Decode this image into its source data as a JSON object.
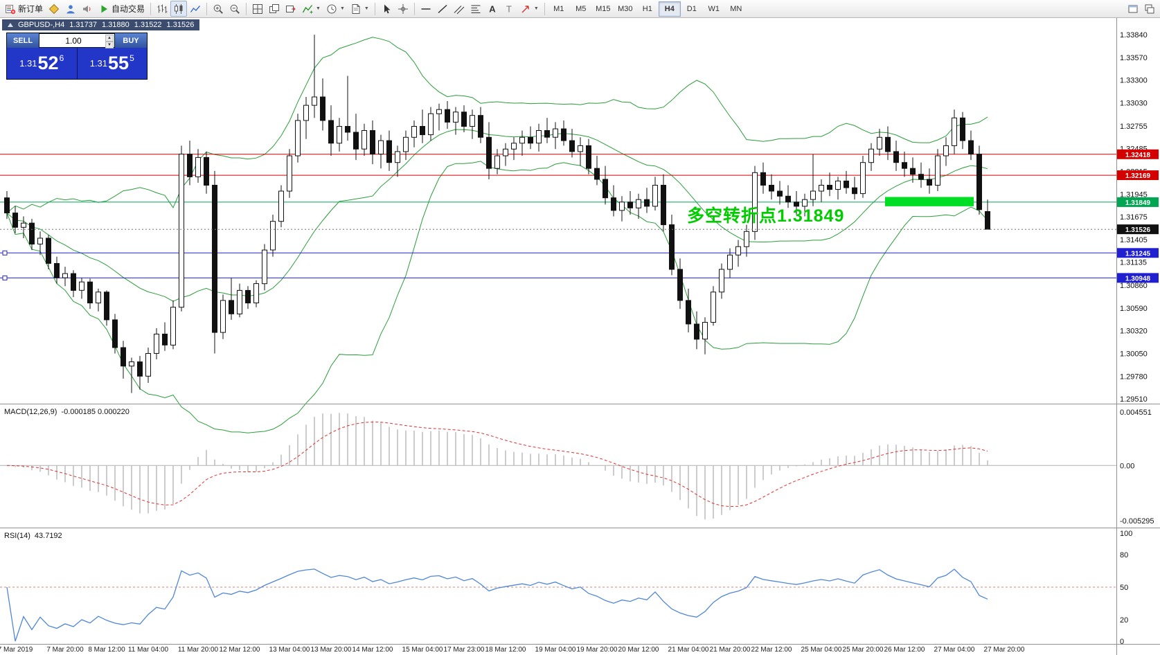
{
  "toolbar": {
    "items": [
      {
        "kind": "button",
        "name": "new-order-button",
        "icon": "neworder",
        "label": "新订单"
      },
      {
        "kind": "button",
        "name": "market-watch-button",
        "icon": "diamond"
      },
      {
        "kind": "button",
        "name": "profile-button",
        "icon": "person"
      },
      {
        "kind": "button",
        "name": "alerts-button",
        "icon": "speaker"
      },
      {
        "kind": "button",
        "name": "autotrading-button",
        "icon": "play",
        "label": "自动交易"
      },
      {
        "kind": "sep"
      },
      {
        "kind": "button",
        "name": "bar-chart-button",
        "icon": "bars"
      },
      {
        "kind": "button",
        "name": "candlestick-chart-button",
        "icon": "candles",
        "active": true
      },
      {
        "kind": "button",
        "name": "line-chart-button",
        "icon": "linechart"
      },
      {
        "kind": "sep"
      },
      {
        "kind": "button",
        "name": "zoom-in-button",
        "icon": "zoomin"
      },
      {
        "kind": "button",
        "name": "zoom-out-button",
        "icon": "zoomout"
      },
      {
        "kind": "sep"
      },
      {
        "kind": "button",
        "name": "tile-windows-button",
        "icon": "tile"
      },
      {
        "kind": "button",
        "name": "cascade-windows-button",
        "icon": "cascade"
      },
      {
        "kind": "button",
        "name": "chart-shift-button",
        "icon": "shift"
      },
      {
        "kind": "button",
        "name": "indicators-button",
        "icon": "indicator",
        "dropdown": true
      },
      {
        "kind": "button",
        "name": "periods-button",
        "icon": "clock",
        "dropdown": true
      },
      {
        "kind": "button",
        "name": "templates-button",
        "icon": "template",
        "dropdown": true
      },
      {
        "kind": "sep"
      },
      {
        "kind": "button",
        "name": "cursor-button",
        "icon": "cursor"
      },
      {
        "kind": "button",
        "name": "crosshair-button",
        "icon": "crosshair"
      },
      {
        "kind": "sep"
      },
      {
        "kind": "button",
        "name": "horizontal-line-button",
        "icon": "hline"
      },
      {
        "kind": "button",
        "name": "trendline-button",
        "icon": "trend"
      },
      {
        "kind": "button",
        "name": "channel-button",
        "icon": "channel"
      },
      {
        "kind": "button",
        "name": "fibonacci-button",
        "icon": "fibo"
      },
      {
        "kind": "button",
        "name": "text-button",
        "icon": "textA"
      },
      {
        "kind": "button",
        "name": "text-label-button",
        "icon": "textT"
      },
      {
        "kind": "button",
        "name": "arrows-button",
        "icon": "arrowtool",
        "dropdown": true
      },
      {
        "kind": "sep"
      }
    ],
    "timeframes": [
      "M1",
      "M5",
      "M15",
      "M30",
      "H1",
      "H4",
      "D1",
      "W1",
      "MN"
    ],
    "active_timeframe": "H4",
    "right_items": [
      {
        "name": "new-chart-window-button",
        "icon": "winbtn1"
      },
      {
        "name": "window-list-button",
        "icon": "winbtn2"
      }
    ]
  },
  "symbol_info": {
    "symbol": "GBPUSD-,H4",
    "open": "1.31737",
    "high": "1.31880",
    "low": "1.31522",
    "close": "1.31526"
  },
  "trade_panel": {
    "sell_label": "SELL",
    "buy_label": "BUY",
    "volume": "1.00",
    "sell_price_prefix": "1.31",
    "sell_price_big": "52",
    "sell_price_sup": "6",
    "buy_price_prefix": "1.31",
    "buy_price_big": "55",
    "buy_price_sup": "5"
  },
  "annotation": {
    "text": "多空转折点1.31849",
    "color": "#00cc00"
  },
  "chart_data": {
    "type": "candlestick",
    "symbol": "GBPUSD-",
    "timeframe": "H4",
    "price_axis_labels": [
      "1.33840",
      "1.33570",
      "1.33300",
      "1.33030",
      "1.32755",
      "1.32485",
      "1.32215",
      "1.31945",
      "1.31675",
      "1.31405",
      "1.31135",
      "1.30860",
      "1.30590",
      "1.30320",
      "1.30050",
      "1.29780",
      "1.29510"
    ],
    "hlines": [
      {
        "price": 1.32418,
        "color": "#d40000",
        "tag": "1.32418",
        "tag_bg": "#d40000"
      },
      {
        "price": 1.32169,
        "color": "#d40000",
        "tag": "1.32169",
        "tag_bg": "#d40000"
      },
      {
        "price": 1.31849,
        "color": "#00a651",
        "tag": "1.31849",
        "tag_bg": "#00a651"
      },
      {
        "price": 1.31245,
        "color": "#2020d0",
        "tag": "1.31245",
        "tag_bg": "#2020d0",
        "handle": true
      },
      {
        "price": 1.30948,
        "color": "#2020d0",
        "tag": "1.30948",
        "tag_bg": "#2020d0",
        "handle": true
      }
    ],
    "current_price": {
      "value": 1.31526,
      "tag": "1.31526",
      "tag_bg": "#111111"
    },
    "highlight_rect": {
      "i1": 106,
      "i2": 116,
      "price_top": 1.3191,
      "price_bottom": 1.318,
      "color": "#00dd22"
    },
    "bollinger": {
      "period": 20,
      "deviation": 2,
      "color": "#2a9d3a"
    },
    "candles": [
      [
        1.319,
        1.3198,
        1.3165,
        1.3172
      ],
      [
        1.3172,
        1.318,
        1.3148,
        1.3155
      ],
      [
        1.3155,
        1.3168,
        1.3142,
        1.316
      ],
      [
        1.316,
        1.3165,
        1.3128,
        1.3135
      ],
      [
        1.3135,
        1.315,
        1.3122,
        1.3142
      ],
      [
        1.3142,
        1.3146,
        1.3105,
        1.3112
      ],
      [
        1.3112,
        1.312,
        1.3088,
        1.3095
      ],
      [
        1.3095,
        1.3108,
        1.3085,
        1.31
      ],
      [
        1.31,
        1.3104,
        1.3072,
        1.308
      ],
      [
        1.308,
        1.3095,
        1.307,
        1.309
      ],
      [
        1.309,
        1.3094,
        1.3058,
        1.3065
      ],
      [
        1.3065,
        1.3082,
        1.3055,
        1.3078
      ],
      [
        1.3078,
        1.308,
        1.3038,
        1.3045
      ],
      [
        1.3045,
        1.3052,
        1.3005,
        1.3012
      ],
      [
        1.3012,
        1.302,
        1.2975,
        1.299
      ],
      [
        1.299,
        1.3,
        1.2958,
        1.2995
      ],
      [
        1.2995,
        1.3002,
        1.2962,
        1.2978
      ],
      [
        1.2978,
        1.3012,
        1.297,
        1.3005
      ],
      [
        1.3005,
        1.3035,
        1.2998,
        1.3028
      ],
      [
        1.3028,
        1.3042,
        1.3008,
        1.3015
      ],
      [
        1.3015,
        1.3068,
        1.301,
        1.306
      ],
      [
        1.306,
        1.3252,
        1.3055,
        1.3242
      ],
      [
        1.3242,
        1.3258,
        1.3205,
        1.3215
      ],
      [
        1.3215,
        1.3248,
        1.3208,
        1.3238
      ],
      [
        1.3238,
        1.3245,
        1.3195,
        1.3205
      ],
      [
        1.3205,
        1.3222,
        1.3005,
        1.303
      ],
      [
        1.303,
        1.3075,
        1.3022,
        1.3068
      ],
      [
        1.3068,
        1.3095,
        1.3045,
        1.3052
      ],
      [
        1.3052,
        1.3088,
        1.3048,
        1.308
      ],
      [
        1.308,
        1.3085,
        1.3058,
        1.3065
      ],
      [
        1.3065,
        1.3092,
        1.306,
        1.3088
      ],
      [
        1.3088,
        1.3135,
        1.308,
        1.3128
      ],
      [
        1.3128,
        1.317,
        1.312,
        1.3162
      ],
      [
        1.3162,
        1.3205,
        1.3155,
        1.3198
      ],
      [
        1.3198,
        1.3248,
        1.319,
        1.324
      ],
      [
        1.324,
        1.329,
        1.3232,
        1.3282
      ],
      [
        1.3282,
        1.331,
        1.326,
        1.33
      ],
      [
        1.33,
        1.3384,
        1.3285,
        1.331
      ],
      [
        1.331,
        1.3332,
        1.327,
        1.3282
      ],
      [
        1.3282,
        1.33,
        1.324,
        1.3255
      ],
      [
        1.3255,
        1.3285,
        1.3245,
        1.3275
      ],
      [
        1.3275,
        1.3335,
        1.3258,
        1.3268
      ],
      [
        1.3268,
        1.329,
        1.3235,
        1.3248
      ],
      [
        1.3248,
        1.3278,
        1.324,
        1.327
      ],
      [
        1.327,
        1.3282,
        1.323,
        1.3242
      ],
      [
        1.3242,
        1.3265,
        1.3225,
        1.3258
      ],
      [
        1.3258,
        1.327,
        1.3222,
        1.3232
      ],
      [
        1.3232,
        1.3252,
        1.3215,
        1.3245
      ],
      [
        1.3245,
        1.327,
        1.3235,
        1.3262
      ],
      [
        1.3262,
        1.3282,
        1.325,
        1.3275
      ],
      [
        1.3275,
        1.3295,
        1.3255,
        1.3265
      ],
      [
        1.3265,
        1.3298,
        1.3258,
        1.329
      ],
      [
        1.329,
        1.3302,
        1.327,
        1.3295
      ],
      [
        1.3295,
        1.3305,
        1.3272,
        1.328
      ],
      [
        1.328,
        1.3298,
        1.3265,
        1.3292
      ],
      [
        1.3292,
        1.33,
        1.3268,
        1.3275
      ],
      [
        1.3275,
        1.3295,
        1.326,
        1.3288
      ],
      [
        1.3288,
        1.3298,
        1.3255,
        1.3262
      ],
      [
        1.3262,
        1.328,
        1.3212,
        1.3225
      ],
      [
        1.3225,
        1.3248,
        1.3218,
        1.324
      ],
      [
        1.324,
        1.3255,
        1.3228,
        1.3248
      ],
      [
        1.3248,
        1.3262,
        1.3235,
        1.3255
      ],
      [
        1.3255,
        1.327,
        1.324,
        1.3262
      ],
      [
        1.3262,
        1.3275,
        1.3248,
        1.3255
      ],
      [
        1.3255,
        1.3278,
        1.3245,
        1.327
      ],
      [
        1.327,
        1.3285,
        1.3255,
        1.3262
      ],
      [
        1.3262,
        1.328,
        1.3248,
        1.3272
      ],
      [
        1.3272,
        1.3282,
        1.3252,
        1.3258
      ],
      [
        1.3258,
        1.3272,
        1.3238,
        1.3245
      ],
      [
        1.3245,
        1.3262,
        1.3228,
        1.3252
      ],
      [
        1.3252,
        1.326,
        1.3218,
        1.3225
      ],
      [
        1.3225,
        1.324,
        1.3205,
        1.3212
      ],
      [
        1.3212,
        1.3228,
        1.3182,
        1.319
      ],
      [
        1.319,
        1.3205,
        1.3168,
        1.3175
      ],
      [
        1.3175,
        1.3192,
        1.3162,
        1.3185
      ],
      [
        1.3185,
        1.3198,
        1.317,
        1.3178
      ],
      [
        1.3178,
        1.3195,
        1.3165,
        1.3188
      ],
      [
        1.3188,
        1.3202,
        1.3172,
        1.318
      ],
      [
        1.318,
        1.3215,
        1.3175,
        1.3205
      ],
      [
        1.3205,
        1.3218,
        1.315,
        1.3158
      ],
      [
        1.3158,
        1.317,
        1.3098,
        1.3105
      ],
      [
        1.3105,
        1.3118,
        1.3058,
        1.3068
      ],
      [
        1.3068,
        1.3082,
        1.303,
        1.304
      ],
      [
        1.304,
        1.3055,
        1.301,
        1.3022
      ],
      [
        1.3022,
        1.3048,
        1.3004,
        1.3042
      ],
      [
        1.3042,
        1.3085,
        1.3038,
        1.3078
      ],
      [
        1.3078,
        1.3112,
        1.307,
        1.3105
      ],
      [
        1.3105,
        1.313,
        1.3095,
        1.3122
      ],
      [
        1.3122,
        1.314,
        1.3108,
        1.3132
      ],
      [
        1.3132,
        1.3158,
        1.312,
        1.315
      ],
      [
        1.315,
        1.3228,
        1.314,
        1.322
      ],
      [
        1.322,
        1.3232,
        1.3195,
        1.3205
      ],
      [
        1.3205,
        1.3218,
        1.3188,
        1.3198
      ],
      [
        1.3198,
        1.321,
        1.3182,
        1.3192
      ],
      [
        1.3192,
        1.3205,
        1.3178,
        1.3185
      ],
      [
        1.3185,
        1.3198,
        1.317,
        1.318
      ],
      [
        1.318,
        1.3195,
        1.3168,
        1.3188
      ],
      [
        1.3188,
        1.3242,
        1.318,
        1.3198
      ],
      [
        1.3198,
        1.3212,
        1.3185,
        1.3205
      ],
      [
        1.3205,
        1.322,
        1.3192,
        1.32
      ],
      [
        1.32,
        1.3215,
        1.3188,
        1.321
      ],
      [
        1.321,
        1.3222,
        1.3195,
        1.3202
      ],
      [
        1.3202,
        1.3215,
        1.3188,
        1.3195
      ],
      [
        1.3195,
        1.324,
        1.319,
        1.3232
      ],
      [
        1.3232,
        1.3255,
        1.3222,
        1.3248
      ],
      [
        1.3248,
        1.3272,
        1.324,
        1.3262
      ],
      [
        1.3262,
        1.3275,
        1.3235,
        1.3245
      ],
      [
        1.3245,
        1.3258,
        1.3222,
        1.3232
      ],
      [
        1.3232,
        1.3245,
        1.3215,
        1.3225
      ],
      [
        1.3225,
        1.3238,
        1.3208,
        1.3218
      ],
      [
        1.3218,
        1.3232,
        1.3202,
        1.3212
      ],
      [
        1.3212,
        1.3225,
        1.3195,
        1.3205
      ],
      [
        1.3205,
        1.3248,
        1.3198,
        1.324
      ],
      [
        1.324,
        1.3262,
        1.3228,
        1.3252
      ],
      [
        1.3252,
        1.3295,
        1.3242,
        1.3285
      ],
      [
        1.3285,
        1.3292,
        1.3248,
        1.3258
      ],
      [
        1.3258,
        1.327,
        1.3235,
        1.3242
      ],
      [
        1.3242,
        1.3252,
        1.317,
        1.3176
      ],
      [
        1.31737,
        1.3188,
        1.31522,
        1.31526
      ]
    ],
    "time_labels": [
      {
        "i": 1,
        "label": "7 Mar 2019"
      },
      {
        "i": 7,
        "label": "7 Mar 20:00"
      },
      {
        "i": 12,
        "label": "8 Mar 12:00"
      },
      {
        "i": 17,
        "label": "11 Mar 04:00"
      },
      {
        "i": 23,
        "label": "11 Mar 20:00"
      },
      {
        "i": 28,
        "label": "12 Mar 12:00"
      },
      {
        "i": 34,
        "label": "13 Mar 04:00"
      },
      {
        "i": 39,
        "label": "13 Mar 20:00"
      },
      {
        "i": 44,
        "label": "14 Mar 12:00"
      },
      {
        "i": 50,
        "label": "15 Mar 04:00"
      },
      {
        "i": 55,
        "label": "17 Mar 23:00"
      },
      {
        "i": 60,
        "label": "18 Mar 12:00"
      },
      {
        "i": 66,
        "label": "19 Mar 04:00"
      },
      {
        "i": 71,
        "label": "19 Mar 20:00"
      },
      {
        "i": 76,
        "label": "20 Mar 12:00"
      },
      {
        "i": 82,
        "label": "21 Mar 04:00"
      },
      {
        "i": 87,
        "label": "21 Mar 20:00"
      },
      {
        "i": 92,
        "label": "22 Mar 12:00"
      },
      {
        "i": 98,
        "label": "25 Mar 04:00"
      },
      {
        "i": 103,
        "label": "25 Mar 20:00"
      },
      {
        "i": 108,
        "label": "26 Mar 12:00"
      },
      {
        "i": 114,
        "label": "27 Mar 04:00"
      },
      {
        "i": 120,
        "label": "27 Mar 20:00"
      }
    ],
    "macd": {
      "name": "MACD(12,26,9)",
      "values_text": "-0.000185 0.000220",
      "fast": 12,
      "slow": 26,
      "signal": 9,
      "axis_labels": [
        "0.004551",
        "0.00",
        "-0.005295"
      ],
      "histogram_color": "#c0c0c0",
      "signal_color": "#e03030"
    },
    "rsi": {
      "name": "RSI(14)",
      "value_text": "43.7192",
      "period": 14,
      "levels": [
        100,
        80,
        50,
        20,
        0
      ],
      "line_color": "#4f86d8",
      "mid_level": 50
    }
  }
}
